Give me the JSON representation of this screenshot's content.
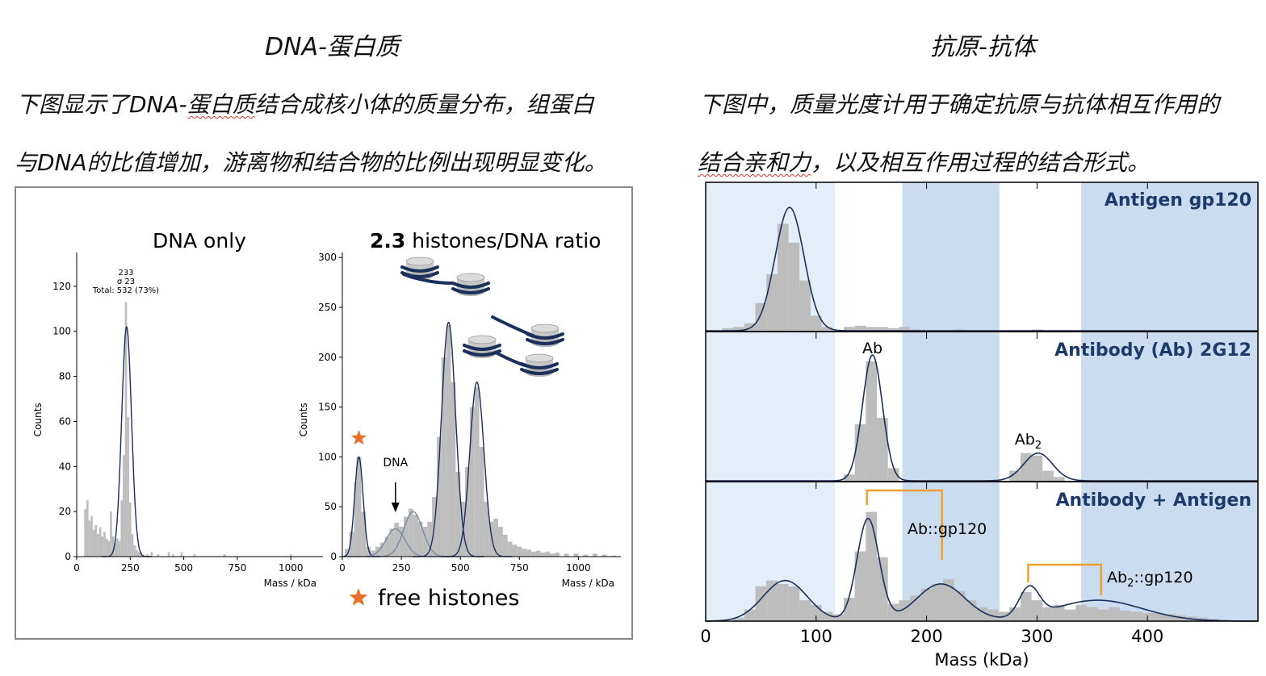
{
  "left": {
    "heading": "DNA-蛋白质",
    "line1": "下图显示了DNA-蛋白质结合成核小体的质量分布，组蛋白",
    "line1_a": "下图显示了DNA-",
    "line1_b": "蛋白质",
    "line1_c": "结合成核小体的质量分布，组蛋白",
    "line2": "与DNA的比值增加，游离物和结合物的比例出现明显变化。"
  },
  "right": {
    "heading": "抗原-抗体",
    "line1_a": "下图中，质量光度计用于确定抗原与抗体相互作用的",
    "line2_a": "结合亲和力",
    "line2_b": "，以及相互作用过程的结合形式。"
  },
  "chart_data": [
    {
      "type": "bar",
      "title": "DNA only",
      "xlabel": "Mass / kDa",
      "ylabel": "Counts",
      "xlim": [
        0,
        1150
      ],
      "ylim": [
        0,
        135
      ],
      "xticks": [
        0,
        250,
        500,
        750,
        1000
      ],
      "yticks": [
        0,
        20,
        40,
        60,
        80,
        100,
        120
      ],
      "annotation": [
        "233",
        "σ 23",
        "Total: 532 (73%)"
      ],
      "bin_width": 10,
      "histogram": [
        {
          "x": 40,
          "y": 21
        },
        {
          "x": 50,
          "y": 25
        },
        {
          "x": 60,
          "y": 16
        },
        {
          "x": 70,
          "y": 18
        },
        {
          "x": 80,
          "y": 12
        },
        {
          "x": 90,
          "y": 14
        },
        {
          "x": 100,
          "y": 10
        },
        {
          "x": 110,
          "y": 13
        },
        {
          "x": 120,
          "y": 9
        },
        {
          "x": 130,
          "y": 11
        },
        {
          "x": 140,
          "y": 8
        },
        {
          "x": 150,
          "y": 7
        },
        {
          "x": 160,
          "y": 20
        },
        {
          "x": 170,
          "y": 9
        },
        {
          "x": 180,
          "y": 6
        },
        {
          "x": 190,
          "y": 8
        },
        {
          "x": 200,
          "y": 7
        },
        {
          "x": 210,
          "y": 25
        },
        {
          "x": 220,
          "y": 45
        },
        {
          "x": 230,
          "y": 113
        },
        {
          "x": 240,
          "y": 62
        },
        {
          "x": 250,
          "y": 24
        },
        {
          "x": 260,
          "y": 10
        },
        {
          "x": 270,
          "y": 5
        },
        {
          "x": 280,
          "y": 3
        },
        {
          "x": 290,
          "y": 2
        },
        {
          "x": 300,
          "y": 2
        },
        {
          "x": 330,
          "y": 1
        },
        {
          "x": 350,
          "y": 2
        },
        {
          "x": 380,
          "y": 1
        },
        {
          "x": 430,
          "y": 2
        },
        {
          "x": 450,
          "y": 1
        },
        {
          "x": 490,
          "y": 2
        },
        {
          "x": 550,
          "y": 1
        },
        {
          "x": 690,
          "y": 1
        },
        {
          "x": 1000,
          "y": 1
        }
      ],
      "fits": [
        {
          "mu": 233,
          "sigma": 23,
          "amp": 102
        }
      ]
    },
    {
      "type": "bar",
      "title_bold": "2.3",
      "title_rest": " histones/DNA ratio",
      "xlabel": "Mass / kDa",
      "ylabel": "Counts",
      "xlim": [
        0,
        1180
      ],
      "ylim": [
        0,
        305
      ],
      "xticks": [
        0,
        250,
        500,
        750,
        1000
      ],
      "yticks": [
        0,
        50,
        100,
        150,
        200,
        250,
        300
      ],
      "dna_label": "DNA",
      "legend_star_label": "free histones",
      "bin_width": 20,
      "histogram": [
        {
          "x": 20,
          "y": 8
        },
        {
          "x": 40,
          "y": 25
        },
        {
          "x": 60,
          "y": 75
        },
        {
          "x": 70,
          "y": 100
        },
        {
          "x": 90,
          "y": 45
        },
        {
          "x": 110,
          "y": 10
        },
        {
          "x": 130,
          "y": 6
        },
        {
          "x": 150,
          "y": 10
        },
        {
          "x": 170,
          "y": 14
        },
        {
          "x": 190,
          "y": 20
        },
        {
          "x": 210,
          "y": 28
        },
        {
          "x": 230,
          "y": 34
        },
        {
          "x": 250,
          "y": 30
        },
        {
          "x": 270,
          "y": 40
        },
        {
          "x": 290,
          "y": 48
        },
        {
          "x": 310,
          "y": 42
        },
        {
          "x": 330,
          "y": 35
        },
        {
          "x": 350,
          "y": 30
        },
        {
          "x": 370,
          "y": 35
        },
        {
          "x": 390,
          "y": 60
        },
        {
          "x": 410,
          "y": 120
        },
        {
          "x": 430,
          "y": 200
        },
        {
          "x": 450,
          "y": 232
        },
        {
          "x": 470,
          "y": 175
        },
        {
          "x": 490,
          "y": 85
        },
        {
          "x": 510,
          "y": 55
        },
        {
          "x": 530,
          "y": 90
        },
        {
          "x": 550,
          "y": 150
        },
        {
          "x": 570,
          "y": 170
        },
        {
          "x": 590,
          "y": 110
        },
        {
          "x": 610,
          "y": 55
        },
        {
          "x": 630,
          "y": 35
        },
        {
          "x": 650,
          "y": 38
        },
        {
          "x": 670,
          "y": 30
        },
        {
          "x": 690,
          "y": 22
        },
        {
          "x": 710,
          "y": 15
        },
        {
          "x": 730,
          "y": 12
        },
        {
          "x": 750,
          "y": 10
        },
        {
          "x": 770,
          "y": 8
        },
        {
          "x": 790,
          "y": 7
        },
        {
          "x": 810,
          "y": 5
        },
        {
          "x": 830,
          "y": 6
        },
        {
          "x": 850,
          "y": 4
        },
        {
          "x": 870,
          "y": 5
        },
        {
          "x": 890,
          "y": 3
        },
        {
          "x": 910,
          "y": 4
        },
        {
          "x": 950,
          "y": 3
        },
        {
          "x": 990,
          "y": 3
        },
        {
          "x": 1030,
          "y": 2
        },
        {
          "x": 1070,
          "y": 3
        },
        {
          "x": 1110,
          "y": 2
        },
        {
          "x": 1150,
          "y": 1
        }
      ],
      "fits": [
        {
          "mu": 70,
          "sigma": 18,
          "amp": 100
        },
        {
          "mu": 225,
          "sigma": 40,
          "amp": 28
        },
        {
          "mu": 300,
          "sigma": 40,
          "amp": 45
        },
        {
          "mu": 450,
          "sigma": 30,
          "amp": 235
        },
        {
          "mu": 570,
          "sigma": 30,
          "amp": 175
        }
      ]
    },
    {
      "type": "bar",
      "xlabel": "Mass (kDa)",
      "xlim": [
        0,
        500
      ],
      "xticks": [
        0,
        100,
        200,
        300,
        400
      ],
      "bands": [
        {
          "from": 0,
          "to": 117,
          "shade": "light"
        },
        {
          "from": 178,
          "to": 266,
          "shade": "dark"
        },
        {
          "from": 340,
          "to": 500,
          "shade": "dark"
        }
      ],
      "panels": [
        {
          "title": "Antigen gp120",
          "ymax": 100,
          "bin_width": 10,
          "histogram": [
            {
              "x": 20,
              "y": 2
            },
            {
              "x": 30,
              "y": 3
            },
            {
              "x": 40,
              "y": 6
            },
            {
              "x": 50,
              "y": 22
            },
            {
              "x": 60,
              "y": 45
            },
            {
              "x": 70,
              "y": 85
            },
            {
              "x": 80,
              "y": 70
            },
            {
              "x": 90,
              "y": 40
            },
            {
              "x": 100,
              "y": 12
            },
            {
              "x": 110,
              "y": 3
            },
            {
              "x": 130,
              "y": 3
            },
            {
              "x": 140,
              "y": 4
            },
            {
              "x": 150,
              "y": 3
            },
            {
              "x": 160,
              "y": 3
            },
            {
              "x": 170,
              "y": 2
            },
            {
              "x": 180,
              "y": 3
            },
            {
              "x": 190,
              "y": 1
            },
            {
              "x": 230,
              "y": 1
            },
            {
              "x": 300,
              "y": 1
            }
          ],
          "fits": [
            {
              "mu": 76,
              "sigma": 13,
              "amp": 98
            }
          ]
        },
        {
          "title": "Antibody (Ab) 2G12",
          "ymax": 100,
          "peak_labels": [
            "Ab",
            "Ab",
            "2"
          ],
          "bin_width": 10,
          "histogram": [
            {
              "x": 130,
              "y": 5
            },
            {
              "x": 140,
              "y": 45
            },
            {
              "x": 150,
              "y": 95
            },
            {
              "x": 160,
              "y": 50
            },
            {
              "x": 170,
              "y": 10
            },
            {
              "x": 280,
              "y": 8
            },
            {
              "x": 290,
              "y": 22
            },
            {
              "x": 300,
              "y": 20
            },
            {
              "x": 310,
              "y": 8
            },
            {
              "x": 320,
              "y": 3
            }
          ],
          "fits": [
            {
              "mu": 151,
              "sigma": 9,
              "amp": 100
            },
            {
              "mu": 301,
              "sigma": 13,
              "amp": 22
            }
          ]
        },
        {
          "title": "Antibody + Antigen",
          "ymax": 100,
          "peak_labels": [
            "Ab::gp120",
            "Ab",
            "2",
            "::gp120"
          ],
          "bin_width": 10,
          "histogram": [
            {
              "x": 30,
              "y": 3
            },
            {
              "x": 40,
              "y": 10
            },
            {
              "x": 50,
              "y": 30
            },
            {
              "x": 60,
              "y": 35
            },
            {
              "x": 70,
              "y": 32
            },
            {
              "x": 80,
              "y": 30
            },
            {
              "x": 90,
              "y": 18
            },
            {
              "x": 100,
              "y": 14
            },
            {
              "x": 110,
              "y": 8
            },
            {
              "x": 120,
              "y": 6
            },
            {
              "x": 130,
              "y": 20
            },
            {
              "x": 140,
              "y": 60
            },
            {
              "x": 150,
              "y": 94
            },
            {
              "x": 160,
              "y": 55
            },
            {
              "x": 170,
              "y": 15
            },
            {
              "x": 180,
              "y": 18
            },
            {
              "x": 190,
              "y": 22
            },
            {
              "x": 200,
              "y": 28
            },
            {
              "x": 210,
              "y": 32
            },
            {
              "x": 220,
              "y": 36
            },
            {
              "x": 230,
              "y": 26
            },
            {
              "x": 240,
              "y": 18
            },
            {
              "x": 250,
              "y": 12
            },
            {
              "x": 260,
              "y": 10
            },
            {
              "x": 270,
              "y": 8
            },
            {
              "x": 280,
              "y": 12
            },
            {
              "x": 290,
              "y": 25
            },
            {
              "x": 300,
              "y": 18
            },
            {
              "x": 310,
              "y": 12
            },
            {
              "x": 320,
              "y": 14
            },
            {
              "x": 330,
              "y": 10
            },
            {
              "x": 340,
              "y": 14
            },
            {
              "x": 350,
              "y": 12
            },
            {
              "x": 360,
              "y": 10
            },
            {
              "x": 370,
              "y": 12
            },
            {
              "x": 380,
              "y": 9
            },
            {
              "x": 390,
              "y": 8
            },
            {
              "x": 400,
              "y": 7
            },
            {
              "x": 410,
              "y": 7
            },
            {
              "x": 420,
              "y": 6
            },
            {
              "x": 430,
              "y": 5
            },
            {
              "x": 440,
              "y": 4
            },
            {
              "x": 450,
              "y": 3
            },
            {
              "x": 460,
              "y": 2
            }
          ],
          "fits": [
            {
              "mu": 72,
              "sigma": 20,
              "amp": 35
            },
            {
              "mu": 147,
              "sigma": 10,
              "amp": 88
            },
            {
              "mu": 213,
              "sigma": 22,
              "amp": 32
            },
            {
              "mu": 293,
              "sigma": 9,
              "amp": 25
            },
            {
              "mu": 355,
              "sigma": 40,
              "amp": 18
            }
          ]
        }
      ]
    }
  ],
  "colors": {
    "bar": "#bdbdbd",
    "fit": "#1b2f5b",
    "fit_light": "#7a8ba3",
    "band_light": "#e4eef8",
    "band_dark": "#cadcef",
    "panel_title": "#1d3a6b",
    "bracket": "#f0a030",
    "star": "#e8702a",
    "nucleosome_dna": "#1b2f5b",
    "nucleosome_core": "#c8c8c8"
  }
}
